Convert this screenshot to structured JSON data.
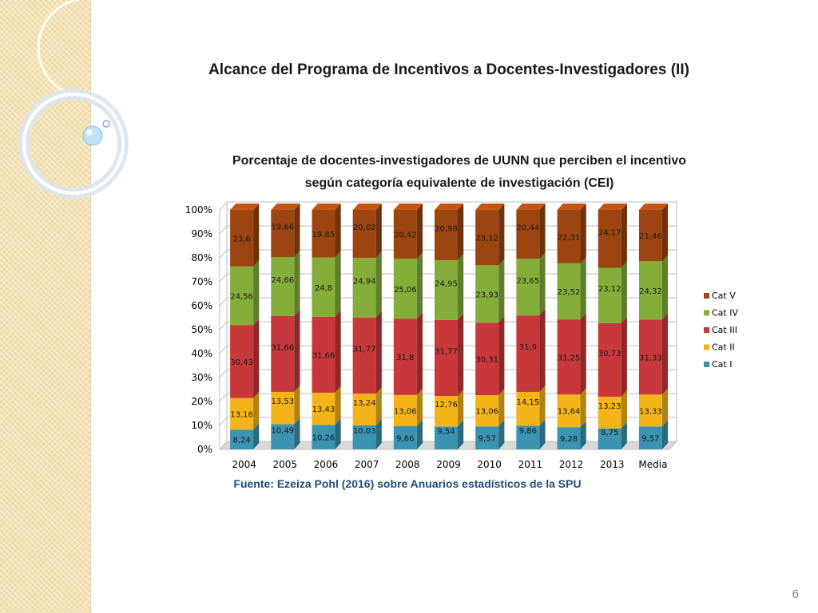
{
  "slide": {
    "title": "Alcance del  Programa de Incentivos a Docentes-Investigadores (II)",
    "page_number": "6",
    "source": "Fuente: Ezeiza Pohl (2016) sobre Anuarios estadísticos de la SPU"
  },
  "chart_data": {
    "type": "bar",
    "stacked": true,
    "percent_stacked": true,
    "title_lines": [
      "Porcentaje de docentes-investigadores  de UUNN que perciben el incentivo",
      "según categoría equivalente de investigación (CEI)"
    ],
    "categories": [
      "2004",
      "2005",
      "2006",
      "2007",
      "2008",
      "2009",
      "2010",
      "2011",
      "2012",
      "2013",
      "Media"
    ],
    "y_ticks": [
      "0%",
      "10%",
      "20%",
      "30%",
      "40%",
      "50%",
      "60%",
      "70%",
      "80%",
      "90%",
      "100%"
    ],
    "ylim": [
      0,
      100
    ],
    "grid": true,
    "legend_position": "right",
    "series": [
      {
        "name": "Cat I",
        "color": "#3a93b0",
        "values": [
          8.24,
          10.49,
          10.26,
          10.03,
          9.66,
          9.54,
          9.57,
          9.86,
          9.28,
          8.75,
          9.57
        ],
        "labels": [
          "8,24",
          "10,49",
          "10,26",
          "10,03",
          "9,66",
          "9,54",
          "9,57",
          "9,86",
          "9,28",
          "8,75",
          "9,57"
        ]
      },
      {
        "name": "Cat II",
        "color": "#f5b31a",
        "values": [
          13.16,
          13.53,
          13.43,
          13.24,
          13.06,
          12.76,
          13.06,
          14.15,
          13.64,
          13.23,
          13.33
        ],
        "labels": [
          "13,16",
          "13,53",
          "13,43",
          "13,24",
          "13,06",
          "12,76",
          "13,06",
          "14,15",
          "13,64",
          "13,23",
          "13,33"
        ]
      },
      {
        "name": "Cat III",
        "color": "#c8373a",
        "values": [
          30.43,
          31.66,
          31.66,
          31.77,
          31.8,
          31.77,
          30.31,
          31.9,
          31.25,
          30.73,
          31.33
        ],
        "labels": [
          "30,43",
          "31,66",
          "31,66",
          "31,77",
          "31,8",
          "31,77",
          "30,31",
          "31,9",
          "31,25",
          "30,73",
          "31,33"
        ]
      },
      {
        "name": "Cat IV",
        "color": "#84ad3a",
        "values": [
          24.56,
          24.66,
          24.8,
          24.94,
          25.06,
          24.95,
          23.93,
          23.65,
          23.52,
          23.12,
          24.32
        ],
        "labels": [
          "24,56",
          "24,66",
          "24,8",
          "24,94",
          "25,06",
          "24,95",
          "23,93",
          "23,65",
          "23,52",
          "23,12",
          "24,32"
        ]
      },
      {
        "name": "Cat V",
        "color": "#9c4510",
        "values": [
          23.6,
          19.66,
          19.85,
          20.02,
          20.42,
          20.98,
          23.12,
          20.44,
          22.31,
          24.17,
          21.46
        ],
        "labels": [
          "23,6",
          "19,66",
          "19,85",
          "20,02",
          "20,42",
          "20,98",
          "23,12",
          "20,44",
          "22,31",
          "24,17",
          "21,46"
        ]
      }
    ]
  }
}
